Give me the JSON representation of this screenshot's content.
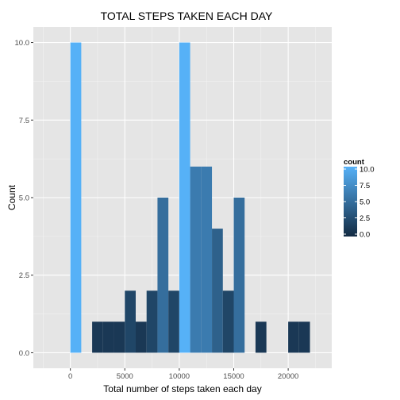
{
  "chart_data": {
    "type": "bar",
    "title": "TOTAL STEPS TAKEN EACH DAY",
    "xlabel": "Total number of steps taken each day",
    "ylabel": "Count",
    "xlim": [
      -3400,
      24000
    ],
    "ylim": [
      -0.5,
      10.5
    ],
    "grid": true,
    "x_ticks": [
      {
        "value": 0,
        "label": "0"
      },
      {
        "value": 5000,
        "label": "5000"
      },
      {
        "value": 10000,
        "label": "10000"
      },
      {
        "value": 15000,
        "label": "15000"
      },
      {
        "value": 20000,
        "label": "20000"
      }
    ],
    "y_ticks": [
      {
        "value": 0,
        "label": "0.0"
      },
      {
        "value": 2.5,
        "label": "2.5"
      },
      {
        "value": 5,
        "label": "5.0"
      },
      {
        "value": 7.5,
        "label": "7.5"
      },
      {
        "value": 10,
        "label": "10.0"
      }
    ],
    "binwidth": 1000,
    "bins": [
      {
        "x_start": 0,
        "x_end": 1000,
        "count": 10
      },
      {
        "x_start": 2000,
        "x_end": 3000,
        "count": 1
      },
      {
        "x_start": 3000,
        "x_end": 4000,
        "count": 1
      },
      {
        "x_start": 4000,
        "x_end": 5000,
        "count": 1
      },
      {
        "x_start": 5000,
        "x_end": 6000,
        "count": 2
      },
      {
        "x_start": 6000,
        "x_end": 7000,
        "count": 1
      },
      {
        "x_start": 7000,
        "x_end": 8000,
        "count": 2
      },
      {
        "x_start": 8000,
        "x_end": 9000,
        "count": 5
      },
      {
        "x_start": 9000,
        "x_end": 10000,
        "count": 2
      },
      {
        "x_start": 10000,
        "x_end": 11000,
        "count": 10
      },
      {
        "x_start": 11000,
        "x_end": 12000,
        "count": 6
      },
      {
        "x_start": 12000,
        "x_end": 13000,
        "count": 6
      },
      {
        "x_start": 13000,
        "x_end": 14000,
        "count": 4
      },
      {
        "x_start": 14000,
        "x_end": 15000,
        "count": 2
      },
      {
        "x_start": 15000,
        "x_end": 16000,
        "count": 5
      },
      {
        "x_start": 17000,
        "x_end": 18000,
        "count": 1
      },
      {
        "x_start": 20000,
        "x_end": 21000,
        "count": 1
      },
      {
        "x_start": 21000,
        "x_end": 22000,
        "count": 1
      }
    ],
    "legend": {
      "title": "count",
      "position": "right",
      "labels": [
        "10.0",
        "7.5",
        "5.0",
        "2.5",
        "0.0"
      ],
      "low_color": "#132B43",
      "high_color": "#56B1F7"
    },
    "colors": {
      "panel_background": "#e5e5e5",
      "grid_major": "#ffffff",
      "grid_minor": "#f2f2f2"
    }
  }
}
